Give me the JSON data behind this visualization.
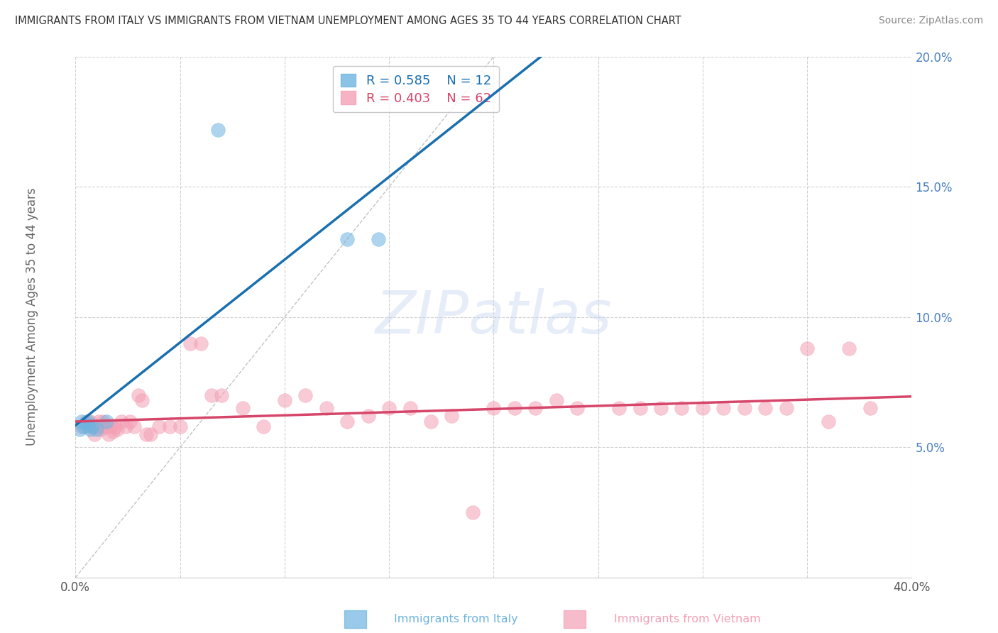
{
  "title": "IMMIGRANTS FROM ITALY VS IMMIGRANTS FROM VIETNAM UNEMPLOYMENT AMONG AGES 35 TO 44 YEARS CORRELATION CHART",
  "source": "Source: ZipAtlas.com",
  "ylabel": "Unemployment Among Ages 35 to 44 years",
  "xlim": [
    0.0,
    0.4
  ],
  "ylim": [
    0.0,
    0.2
  ],
  "italy_color": "#6eb4e0",
  "italy_line_color": "#1a6faf",
  "vietnam_color": "#f4a0b5",
  "vietnam_line_color": "#d6456a",
  "diag_color": "#aaaaaa",
  "italy_R": 0.585,
  "italy_N": 12,
  "vietnam_R": 0.403,
  "vietnam_N": 62,
  "italy_x": [
    0.002,
    0.003,
    0.004,
    0.005,
    0.006,
    0.007,
    0.008,
    0.01,
    0.015,
    0.068,
    0.13,
    0.145
  ],
  "italy_y": [
    0.057,
    0.06,
    0.058,
    0.059,
    0.06,
    0.057,
    0.058,
    0.057,
    0.06,
    0.172,
    0.13,
    0.13
  ],
  "vietnam_x": [
    0.003,
    0.005,
    0.006,
    0.007,
    0.008,
    0.009,
    0.01,
    0.011,
    0.012,
    0.013,
    0.014,
    0.015,
    0.016,
    0.017,
    0.018,
    0.019,
    0.02,
    0.022,
    0.024,
    0.026,
    0.028,
    0.03,
    0.032,
    0.034,
    0.036,
    0.04,
    0.045,
    0.05,
    0.055,
    0.06,
    0.065,
    0.07,
    0.08,
    0.09,
    0.1,
    0.11,
    0.12,
    0.13,
    0.14,
    0.15,
    0.16,
    0.17,
    0.18,
    0.19,
    0.2,
    0.21,
    0.22,
    0.23,
    0.24,
    0.26,
    0.27,
    0.28,
    0.29,
    0.3,
    0.31,
    0.32,
    0.33,
    0.34,
    0.35,
    0.36,
    0.37,
    0.38
  ],
  "vietnam_y": [
    0.058,
    0.06,
    0.058,
    0.06,
    0.058,
    0.055,
    0.058,
    0.06,
    0.057,
    0.06,
    0.058,
    0.058,
    0.055,
    0.058,
    0.056,
    0.058,
    0.057,
    0.06,
    0.058,
    0.06,
    0.058,
    0.07,
    0.068,
    0.055,
    0.055,
    0.058,
    0.058,
    0.058,
    0.09,
    0.09,
    0.07,
    0.07,
    0.065,
    0.058,
    0.068,
    0.07,
    0.065,
    0.06,
    0.062,
    0.065,
    0.065,
    0.06,
    0.062,
    0.025,
    0.065,
    0.065,
    0.065,
    0.068,
    0.065,
    0.065,
    0.065,
    0.065,
    0.065,
    0.065,
    0.065,
    0.065,
    0.065,
    0.065,
    0.088,
    0.06,
    0.088,
    0.065
  ],
  "watermark_text": "ZIPatlas",
  "background_color": "#ffffff",
  "grid_color": "#cccccc",
  "italy_label": "Immigrants from Italy",
  "vietnam_label": "Immigrants from Vietnam"
}
